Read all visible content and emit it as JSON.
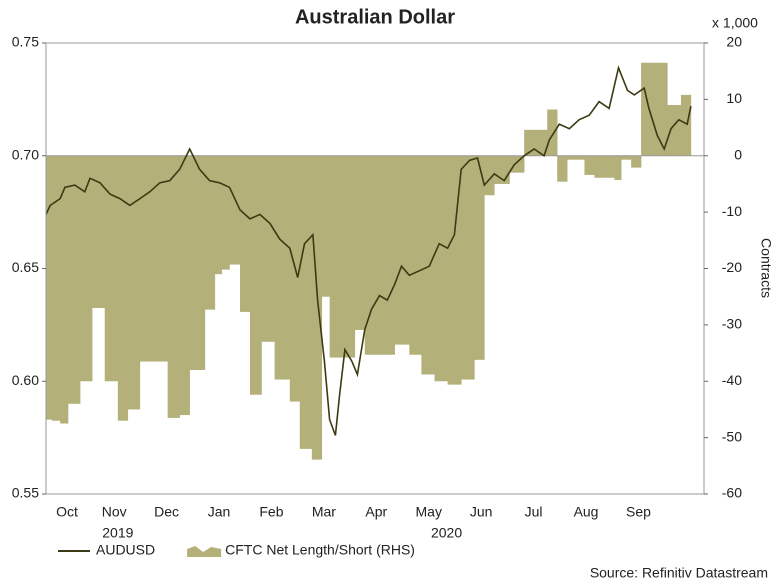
{
  "chart_data": {
    "type": "line",
    "title": "Australian Dollar",
    "y2_unit": "x 1,000",
    "y2label": "Contracts",
    "source": "Source: Refinitiv Datastream",
    "xlim": [
      0.2,
      12.75
    ],
    "xticks": [
      {
        "value": 0.6,
        "label": "Oct"
      },
      {
        "value": 1.5,
        "label": "Nov"
      },
      {
        "value": 2.5,
        "label": "Dec"
      },
      {
        "value": 3.5,
        "label": "Jan"
      },
      {
        "value": 4.5,
        "label": "Feb"
      },
      {
        "value": 5.5,
        "label": "Mar"
      },
      {
        "value": 6.5,
        "label": "Apr"
      },
      {
        "value": 7.5,
        "label": "May"
      },
      {
        "value": 8.5,
        "label": "Jun"
      },
      {
        "value": 9.5,
        "label": "Jul"
      },
      {
        "value": 10.5,
        "label": "Aug"
      },
      {
        "value": 11.5,
        "label": "Sep"
      }
    ],
    "x_year_labels": [
      {
        "value": 1.57,
        "label": "2019"
      },
      {
        "value": 7.84,
        "label": "2020"
      }
    ],
    "ylim": [
      0.55,
      0.75
    ],
    "yticks": [
      0.55,
      {
        "value": 0.6,
        "label": "0.60"
      },
      0.65,
      {
        "value": 0.7,
        "label": "0.70"
      },
      0.75
    ],
    "y2lim": [
      -60,
      20
    ],
    "y2ticks": [
      -60,
      -50,
      -40,
      -30,
      -20,
      -10,
      0,
      10,
      20
    ],
    "series": [
      {
        "name": "AUDUSD",
        "type": "line",
        "color": "#3b3a12",
        "x": [
          0.2,
          0.28,
          0.47,
          0.56,
          0.75,
          0.94,
          1.04,
          1.23,
          1.42,
          1.61,
          1.8,
          1.99,
          2.18,
          2.37,
          2.56,
          2.75,
          2.94,
          3.13,
          3.32,
          3.51,
          3.7,
          3.9,
          4.09,
          4.28,
          4.47,
          4.66,
          4.85,
          5.0,
          5.13,
          5.29,
          5.38,
          5.51,
          5.61,
          5.72,
          5.8,
          5.9,
          6.03,
          6.14,
          6.28,
          6.41,
          6.56,
          6.71,
          6.85,
          6.98,
          7.13,
          7.32,
          7.51,
          7.7,
          7.86,
          7.99,
          8.12,
          8.28,
          8.43,
          8.56,
          8.75,
          8.94,
          9.13,
          9.32,
          9.51,
          9.7,
          9.8,
          9.99,
          10.18,
          10.37,
          10.56,
          10.75,
          10.94,
          11.12,
          11.29,
          11.42,
          11.61,
          11.7,
          11.86,
          11.99,
          12.12,
          12.27,
          12.43,
          12.5
        ],
        "values": [
          0.674,
          0.678,
          0.681,
          0.686,
          0.687,
          0.684,
          0.69,
          0.688,
          0.683,
          0.681,
          0.678,
          0.681,
          0.684,
          0.688,
          0.689,
          0.694,
          0.703,
          0.694,
          0.689,
          0.688,
          0.686,
          0.676,
          0.672,
          0.674,
          0.67,
          0.663,
          0.659,
          0.646,
          0.661,
          0.665,
          0.636,
          0.609,
          0.583,
          0.576,
          0.594,
          0.614,
          0.609,
          0.603,
          0.623,
          0.632,
          0.638,
          0.636,
          0.643,
          0.651,
          0.647,
          0.649,
          0.651,
          0.661,
          0.659,
          0.665,
          0.694,
          0.698,
          0.699,
          0.687,
          0.692,
          0.689,
          0.696,
          0.7,
          0.703,
          0.7,
          0.707,
          0.714,
          0.712,
          0.716,
          0.718,
          0.724,
          0.721,
          0.739,
          0.729,
          0.727,
          0.73,
          0.721,
          0.709,
          0.703,
          0.712,
          0.716,
          0.714,
          0.722
        ]
      },
      {
        "name": "CFTC Net Length/Short (RHS)",
        "type": "step-area",
        "axis": "y2",
        "color": "#b3b07a",
        "bins": [
          0.2,
          0.31,
          0.47,
          0.62,
          0.85,
          1.08,
          1.32,
          1.57,
          1.76,
          1.99,
          2.52,
          2.75,
          2.94,
          3.23,
          3.42,
          3.55,
          3.7,
          3.9,
          4.09,
          4.31,
          4.56,
          4.85,
          5.04,
          5.27,
          5.46,
          5.61,
          6.09,
          6.28,
          6.85,
          7.13,
          7.36,
          7.61,
          7.86,
          8.12,
          8.37,
          8.56,
          8.75,
          9.04,
          9.32,
          9.61,
          9.76,
          9.95,
          10.14,
          10.47,
          10.66,
          11.04,
          11.17,
          11.36,
          11.55,
          12.05,
          12.31,
          12.5
        ],
        "values": [
          -46.8,
          -47,
          -47.5,
          -44,
          -40,
          -27,
          -40,
          -47,
          -45,
          -36.5,
          -46.5,
          -46,
          -38,
          -27.3,
          -21,
          -20.2,
          -19.3,
          -27.7,
          -42.4,
          -33,
          -39.7,
          -43.6,
          -52,
          -53.9,
          -25,
          -35.8,
          -30.9,
          -35.3,
          -33.5,
          -35.3,
          -38.8,
          -40,
          -40.6,
          -39.7,
          -36.2,
          -7,
          -5,
          -3,
          4.6,
          4.6,
          8.2,
          -4.6,
          -0.7,
          -3.4,
          -3.9,
          -4.3,
          -0.7,
          -2.1,
          16.5,
          9,
          10.8
        ]
      }
    ]
  }
}
